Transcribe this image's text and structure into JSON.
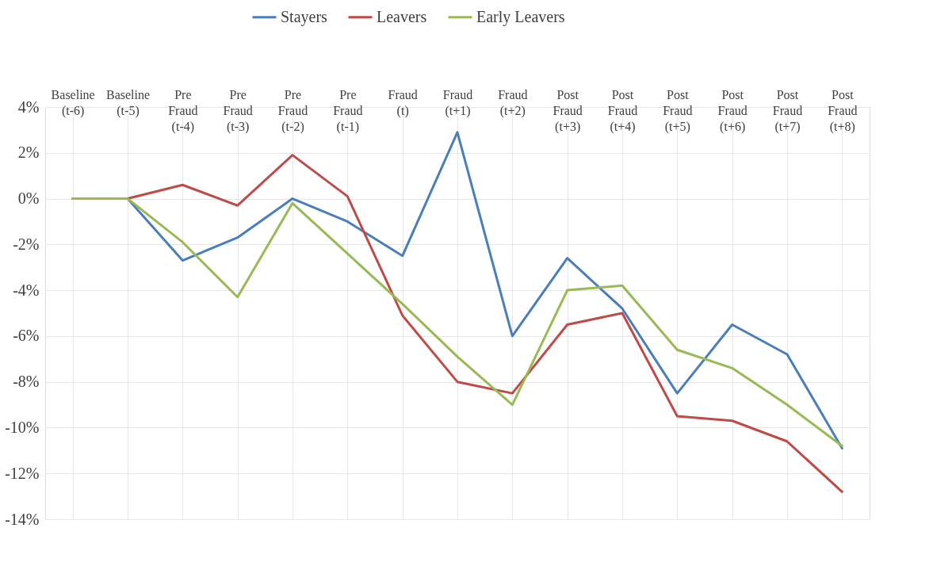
{
  "chart_data": {
    "type": "line",
    "categories": [
      "Baseline (t-6)",
      "Baseline (t-5)",
      "Pre Fraud (t-4)",
      "Pre Fraud (t-3)",
      "Pre Fraud (t-2)",
      "Pre Fraud (t-1)",
      "Fraud (t)",
      "Fraud (t+1)",
      "Fraud (t+2)",
      "Post Fraud (t+3)",
      "Post Fraud (t+4)",
      "Post Fraud (t+5)",
      "Post Fraud (t+6)",
      "Post Fraud (t+7)",
      "Post Fraud (t+8)"
    ],
    "series": [
      {
        "name": "Stayers",
        "color": "#4a7ebb",
        "values": [
          0,
          0,
          -2.7,
          -1.7,
          0.0,
          -1.0,
          -2.5,
          2.9,
          -6.0,
          -2.6,
          -4.8,
          -8.5,
          -5.5,
          -6.8,
          -10.9
        ]
      },
      {
        "name": "Leavers",
        "color": "#be4b48",
        "values": [
          0,
          0,
          0.6,
          -0.3,
          1.9,
          0.1,
          -5.1,
          -8.0,
          -8.5,
          -5.5,
          -5.0,
          -9.5,
          -9.7,
          -10.6,
          -12.8
        ]
      },
      {
        "name": "Early Leavers",
        "color": "#98b954",
        "values": [
          0,
          0,
          -1.9,
          -4.3,
          -0.2,
          -2.4,
          -4.6,
          -6.9,
          -9.0,
          -4.0,
          -3.8,
          -6.6,
          -7.4,
          -9.0,
          -10.8
        ]
      }
    ],
    "ylim": [
      -14,
      4
    ],
    "yticks": [
      {
        "value": 4,
        "label": "4%"
      },
      {
        "value": 2,
        "label": "2%"
      },
      {
        "value": 0,
        "label": "0%"
      },
      {
        "value": -2,
        "label": "-2%"
      },
      {
        "value": -4,
        "label": "-4%"
      },
      {
        "value": -6,
        "label": "-6%"
      },
      {
        "value": -8,
        "label": "-8%"
      },
      {
        "value": -10,
        "label": "-10%"
      },
      {
        "value": -12,
        "label": "-12%"
      },
      {
        "value": -14,
        "label": "-14%"
      }
    ],
    "grid": true,
    "legend": "top",
    "marker": "none",
    "line_style": "solid"
  }
}
